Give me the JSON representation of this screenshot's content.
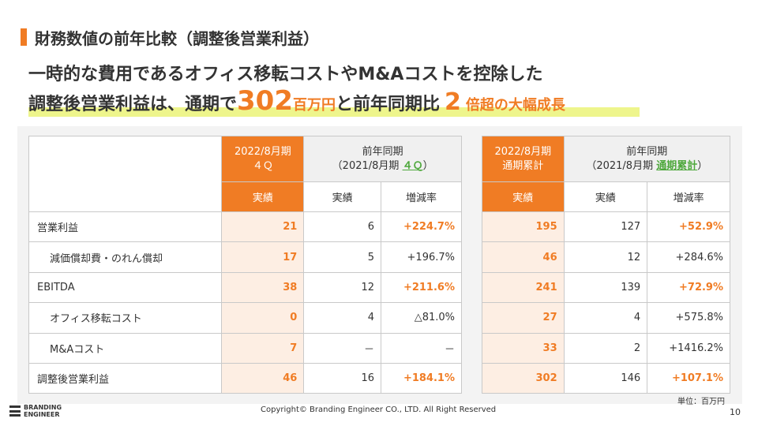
{
  "title": "財務数値の前年比較（調整後営業利益）",
  "headline": {
    "line1": "一時的な費用であるオフィス移転コストやM&Aコストを控除した",
    "line2_a": "調整後営業利益は、通期で",
    "line2_num": "302",
    "line2_unit": "百万円",
    "line2_b": "と前年同期比",
    "line2_num2": "2",
    "line2_c": "倍超の大幅成長"
  },
  "left_table": {
    "header_current_l1": "2022/8月期",
    "header_current_l2": "４Ｑ",
    "header_prev_l1": "前年同期",
    "header_prev_l2_a": "（2021/8月期",
    "header_prev_l2_hl": "４Ｑ",
    "header_prev_l2_b": "）",
    "sub_actual": "実績",
    "sub_prev_actual": "実績",
    "sub_change": "増減率"
  },
  "right_table": {
    "header_current_l1": "2022/8月期",
    "header_current_l2": "通期累計",
    "header_prev_l1": "前年同期",
    "header_prev_l2_a": "（2021/8月期",
    "header_prev_l2_hl": "通期累計",
    "header_prev_l2_b": "）",
    "sub_actual": "実績",
    "sub_prev_actual": "実績",
    "sub_change": "増減率"
  },
  "rows": [
    {
      "label": "営業利益",
      "q4": "21",
      "q4_prev": "6",
      "q4_chg": "+224.7%",
      "fy": "195",
      "fy_prev": "127",
      "fy_chg": "+52.9%"
    },
    {
      "label": "減価償却費・のれん償却",
      "q4": "17",
      "q4_prev": "5",
      "q4_chg": "+196.7%",
      "fy": "46",
      "fy_prev": "12",
      "fy_chg": "+284.6%"
    },
    {
      "label": "EBITDA",
      "q4": "38",
      "q4_prev": "12",
      "q4_chg": "+211.6%",
      "fy": "241",
      "fy_prev": "139",
      "fy_chg": "+72.9%"
    },
    {
      "label": "オフィス移転コスト",
      "q4": "0",
      "q4_prev": "4",
      "q4_chg": "△81.0%",
      "fy": "27",
      "fy_prev": "4",
      "fy_chg": "+575.8%"
    },
    {
      "label": "M&Aコスト",
      "q4": "7",
      "q4_prev": "－",
      "q4_chg": "－",
      "fy": "33",
      "fy_prev": "2",
      "fy_chg": "+1416.2%"
    },
    {
      "label": "調整後営業利益",
      "q4": "46",
      "q4_prev": "16",
      "q4_chg": "+184.1%",
      "fy": "302",
      "fy_prev": "146",
      "fy_chg": "+107.1%"
    }
  ],
  "unit": "単位：百万円",
  "footer": {
    "copyright": "Copyright© Branding Engineer CO., LTD. All Right Reserved",
    "page": "10",
    "logo_line1": "BRANDING",
    "logo_line2": "ENGINEER"
  },
  "colors": {
    "accent": "#f07c24",
    "highlight": "#eef58c",
    "green": "#4fa83d"
  }
}
